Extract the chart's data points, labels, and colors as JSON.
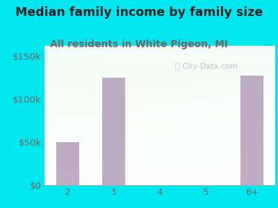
{
  "title": "Median family income by family size",
  "subtitle": "All residents in White Pigeon, MI",
  "categories": [
    "2",
    "3",
    "4",
    "5",
    "6+"
  ],
  "values": [
    50000,
    125000,
    0,
    0,
    127000
  ],
  "bar_color": "#b39dbd",
  "background_outer": "#00e8ef",
  "title_color": "#212121",
  "subtitle_color": "#7a6060",
  "tick_label_color": "#7a6060",
  "ylabel_ticks": [
    0,
    50000,
    100000,
    150000
  ],
  "ylabel_labels": [
    "$0",
    "$50k",
    "$100k",
    "$150k"
  ],
  "ylim": [
    0,
    162000
  ],
  "watermark": "Ⓣ City-Data.com",
  "title_fontsize": 12.5,
  "subtitle_fontsize": 10
}
